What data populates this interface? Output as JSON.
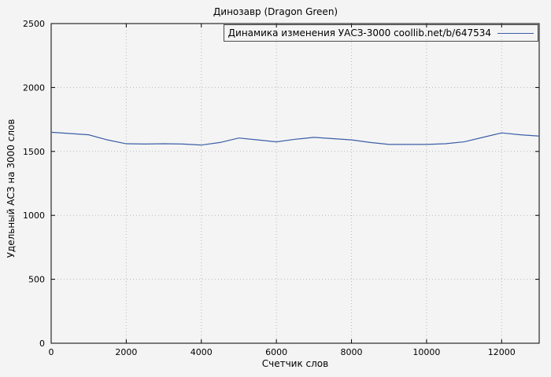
{
  "title": "Динозавр (Dragon Green)",
  "legend": {
    "label": "Динамика изменения УАСЗ-3000 coollib.net/b/647534"
  },
  "axes": {
    "xlabel": "Счетчик слов",
    "ylabel": "Удельный АСЗ на 3000 слов"
  },
  "colors": {
    "line": "#3b5ea6",
    "grid": "#b8b8b8",
    "axis": "#000000",
    "background": "#f4f4f4"
  },
  "chart_data": {
    "type": "line",
    "title": "Динозавр (Dragon Green)",
    "xlabel": "Счетчик слов",
    "ylabel": "Удельный АСЗ на 3000 слов",
    "xlim": [
      0,
      13000
    ],
    "ylim": [
      0,
      2500
    ],
    "x_ticks": [
      0,
      2000,
      4000,
      6000,
      8000,
      10000,
      12000
    ],
    "y_ticks": [
      0,
      500,
      1000,
      1500,
      2000,
      2500
    ],
    "grid": true,
    "legend_position": "top-right-inside",
    "x": [
      0,
      500,
      1000,
      1500,
      2000,
      2500,
      3000,
      3500,
      4000,
      4500,
      5000,
      5500,
      6000,
      6500,
      7000,
      7500,
      8000,
      8500,
      9000,
      9500,
      10000,
      10500,
      11000,
      11500,
      12000,
      12500,
      13000
    ],
    "series": [
      {
        "name": "Динамика изменения УАСЗ-3000 coollib.net/b/647534",
        "values": [
          1650,
          1640,
          1630,
          1590,
          1560,
          1558,
          1560,
          1558,
          1550,
          1570,
          1605,
          1590,
          1575,
          1595,
          1610,
          1600,
          1590,
          1570,
          1555,
          1555,
          1555,
          1560,
          1575,
          1610,
          1645,
          1630,
          1620
        ]
      }
    ]
  }
}
